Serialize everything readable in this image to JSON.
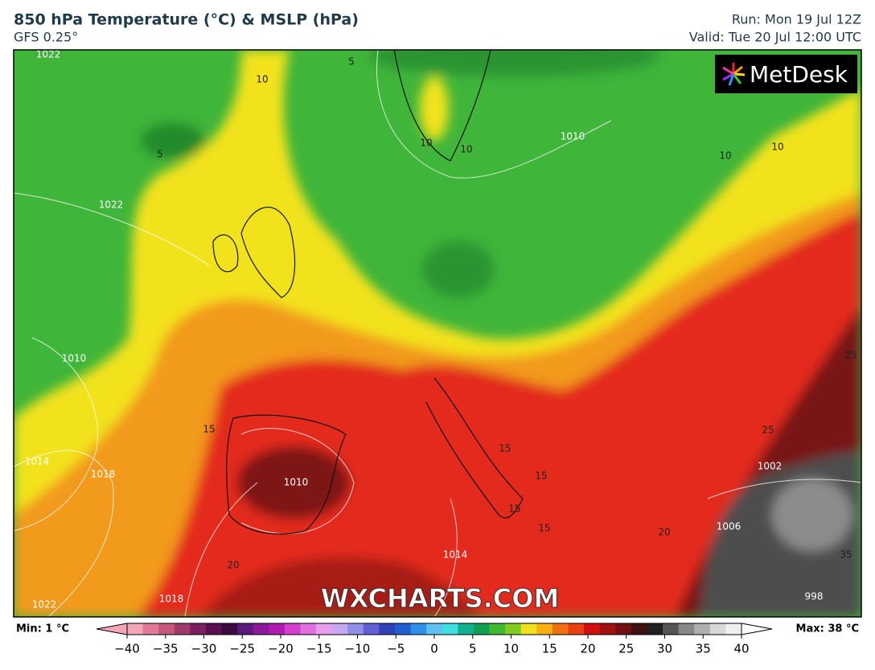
{
  "header": {
    "title": "850 hPa Temperature (°C) & MSLP (hPa)",
    "subtitle": "GFS 0.25°",
    "run": "Run: Mon 19 Jul 12Z",
    "valid": "Valid: Tue 20 Jul 12:00 UTC"
  },
  "logo": "MetDesk",
  "watermark": "WXCHARTS.COM",
  "map": {
    "contour_labels": [
      1022,
      10,
      5,
      1022,
      5,
      10,
      1010,
      10,
      10,
      1010,
      15,
      1014,
      1018,
      1010,
      10,
      15,
      15,
      15,
      15,
      20,
      25,
      1002,
      1006,
      25,
      35,
      20,
      1022,
      1018,
      998,
      1014
    ]
  },
  "colorbar": {
    "min_label": "Min: 1 °C",
    "max_label": "Max: 38 °C",
    "range": [
      -40,
      40
    ],
    "ticks": [
      {
        "value": -40,
        "label": "−40"
      },
      {
        "value": -35,
        "label": "−35"
      },
      {
        "value": -30,
        "label": "−30"
      },
      {
        "value": -25,
        "label": "−25"
      },
      {
        "value": -20,
        "label": "−20"
      },
      {
        "value": -15,
        "label": "−15"
      },
      {
        "value": -10,
        "label": "−10"
      },
      {
        "value": -5,
        "label": "−5"
      },
      0,
      5,
      10,
      15,
      20,
      25,
      30,
      35,
      40
    ]
  }
}
